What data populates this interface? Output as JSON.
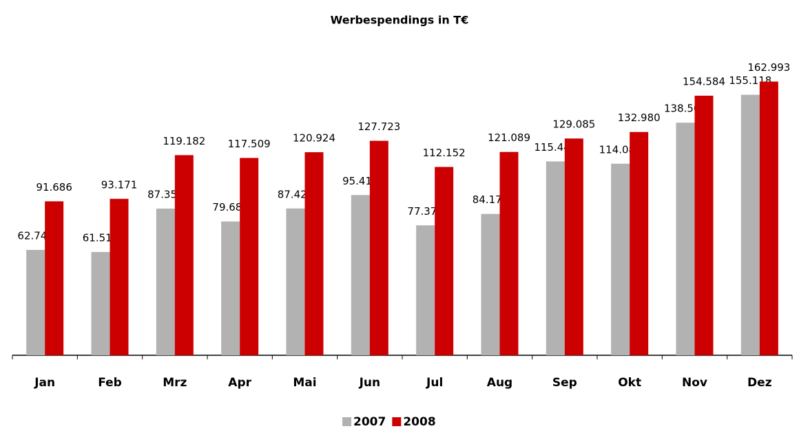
{
  "chart_data": {
    "type": "bar",
    "title": "Werbespendings in T€",
    "categories": [
      "Jan",
      "Feb",
      "Mrz",
      "Apr",
      "Mai",
      "Jun",
      "Jul",
      "Aug",
      "Sep",
      "Okt",
      "Nov",
      "Dez"
    ],
    "series": [
      {
        "name": "2007",
        "color": "#b2b2b2",
        "values": [
          62744,
          61512,
          87359,
          79688,
          87429,
          95417,
          77372,
          84177,
          115449,
          114087,
          138501,
          155118
        ],
        "value_labels": [
          "62.744",
          "61.512",
          "87.359",
          "79.688",
          "87.429",
          "95.417",
          "77.372",
          "84.177",
          "115.449",
          "114.087",
          "138.501",
          "155.118"
        ]
      },
      {
        "name": "2008",
        "color": "#cc0000",
        "values": [
          91686,
          93171,
          119182,
          117509,
          120924,
          127723,
          112152,
          121089,
          129085,
          132980,
          154584,
          162993
        ],
        "value_labels": [
          "91.686",
          "93.171",
          "119.182",
          "117.509",
          "120.924",
          "127.723",
          "112.152",
          "121.089",
          "129.085",
          "132.980",
          "154.584",
          "162.993"
        ]
      }
    ],
    "ylim": [
      0,
      180000
    ],
    "legend": "bottom"
  }
}
